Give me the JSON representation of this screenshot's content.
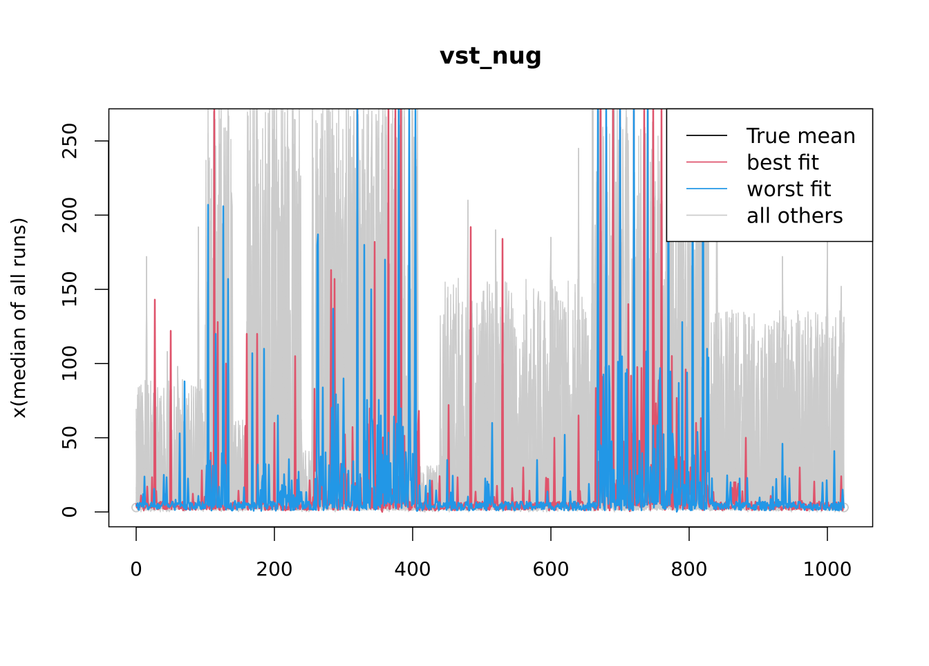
{
  "chart_data": {
    "type": "line",
    "title": "vst_nug",
    "xlabel": "",
    "ylabel": "x(median of all runs)",
    "xlim": [
      -20,
      1085
    ],
    "ylim": [
      -10,
      272
    ],
    "x_ticks": [
      0,
      200,
      400,
      600,
      800,
      1000
    ],
    "y_ticks": [
      0,
      50,
      100,
      150,
      200,
      250
    ],
    "grid": false,
    "legend": {
      "placement": "top-right",
      "entries": [
        {
          "label": "True mean",
          "color": "#000000"
        },
        {
          "label": "best fit",
          "color": "#DF536B"
        },
        {
          "label": "worst fit",
          "color": "#2297E6"
        },
        {
          "label": "all others",
          "color": "#CCCCCC"
        }
      ]
    },
    "series": [
      {
        "name": "all others",
        "color": "#CCCCCC",
        "envelope": [
          [
            0,
            100,
            85
          ],
          [
            100,
            140,
            272
          ],
          [
            140,
            160,
            60
          ],
          [
            160,
            240,
            272
          ],
          [
            240,
            255,
            40
          ],
          [
            255,
            410,
            272
          ],
          [
            410,
            440,
            30
          ],
          [
            440,
            660,
            150
          ],
          [
            660,
            830,
            272
          ],
          [
            830,
            1025,
            130
          ]
        ],
        "peaks": [
          [
            15,
            172
          ],
          [
            25,
            80
          ],
          [
            45,
            108
          ],
          [
            60,
            98
          ],
          [
            90,
            192
          ],
          [
            120,
            272
          ],
          [
            410,
            20
          ],
          [
            480,
            210
          ],
          [
            520,
            190
          ],
          [
            600,
            185
          ],
          [
            640,
            245
          ],
          [
            660,
            272
          ],
          [
            840,
            272
          ],
          [
            900,
            115
          ],
          [
            935,
            172
          ],
          [
            1000,
            185
          ],
          [
            1012,
            118
          ],
          [
            1020,
            152
          ]
        ]
      },
      {
        "name": "best fit",
        "color": "#DF536B",
        "peaks": [
          [
            27,
            143
          ],
          [
            50,
            122
          ],
          [
            95,
            28
          ],
          [
            108,
            40
          ],
          [
            113,
            272
          ],
          [
            118,
            128
          ],
          [
            130,
            100
          ],
          [
            158,
            58
          ],
          [
            160,
            120
          ],
          [
            175,
            120
          ],
          [
            200,
            60
          ],
          [
            230,
            105
          ],
          [
            258,
            83
          ],
          [
            282,
            163
          ],
          [
            287,
            157
          ],
          [
            300,
            60
          ],
          [
            320,
            272
          ],
          [
            345,
            182
          ],
          [
            360,
            120
          ],
          [
            365,
            272
          ],
          [
            375,
            272
          ],
          [
            383,
            272
          ],
          [
            452,
            72
          ],
          [
            484,
            192
          ],
          [
            530,
            184
          ],
          [
            560,
            30
          ],
          [
            605,
            50
          ],
          [
            640,
            65
          ],
          [
            672,
            272
          ],
          [
            690,
            272
          ],
          [
            700,
            272
          ],
          [
            712,
            140
          ],
          [
            720,
            272
          ],
          [
            735,
            272
          ],
          [
            748,
            272
          ],
          [
            760,
            272
          ],
          [
            795,
            96
          ],
          [
            810,
            60
          ],
          [
            865,
            20
          ],
          [
            882,
            50
          ],
          [
            960,
            30
          ],
          [
            1020,
            24
          ]
        ],
        "active": [
          [
            255,
            410,
            120
          ],
          [
            665,
            830,
            180
          ]
        ]
      },
      {
        "name": "worst fit",
        "color": "#2297E6",
        "peaks": [
          [
            10,
            12
          ],
          [
            40,
            25
          ],
          [
            63,
            53
          ],
          [
            70,
            88
          ],
          [
            104,
            207
          ],
          [
            115,
            120
          ],
          [
            126,
            206
          ],
          [
            133,
            157
          ],
          [
            168,
            107
          ],
          [
            185,
            110
          ],
          [
            205,
            65
          ],
          [
            262,
            180
          ],
          [
            263,
            187
          ],
          [
            285,
            137
          ],
          [
            300,
            90
          ],
          [
            320,
            272
          ],
          [
            330,
            180
          ],
          [
            340,
            150
          ],
          [
            360,
            170
          ],
          [
            380,
            272
          ],
          [
            395,
            272
          ],
          [
            404,
            272
          ],
          [
            450,
            35
          ],
          [
            515,
            60
          ],
          [
            580,
            35
          ],
          [
            620,
            52
          ],
          [
            668,
            272
          ],
          [
            680,
            272
          ],
          [
            700,
            272
          ],
          [
            720,
            272
          ],
          [
            740,
            272
          ],
          [
            770,
            272
          ],
          [
            790,
            128
          ],
          [
            805,
            272
          ],
          [
            820,
            272
          ],
          [
            826,
            110
          ],
          [
            860,
            20
          ],
          [
            935,
            46
          ],
          [
            1010,
            41
          ],
          [
            1022,
            15
          ]
        ],
        "active": [
          [
            100,
            140,
            70
          ],
          [
            160,
            240,
            60
          ],
          [
            255,
            410,
            140
          ],
          [
            665,
            830,
            200
          ]
        ]
      }
    ]
  }
}
